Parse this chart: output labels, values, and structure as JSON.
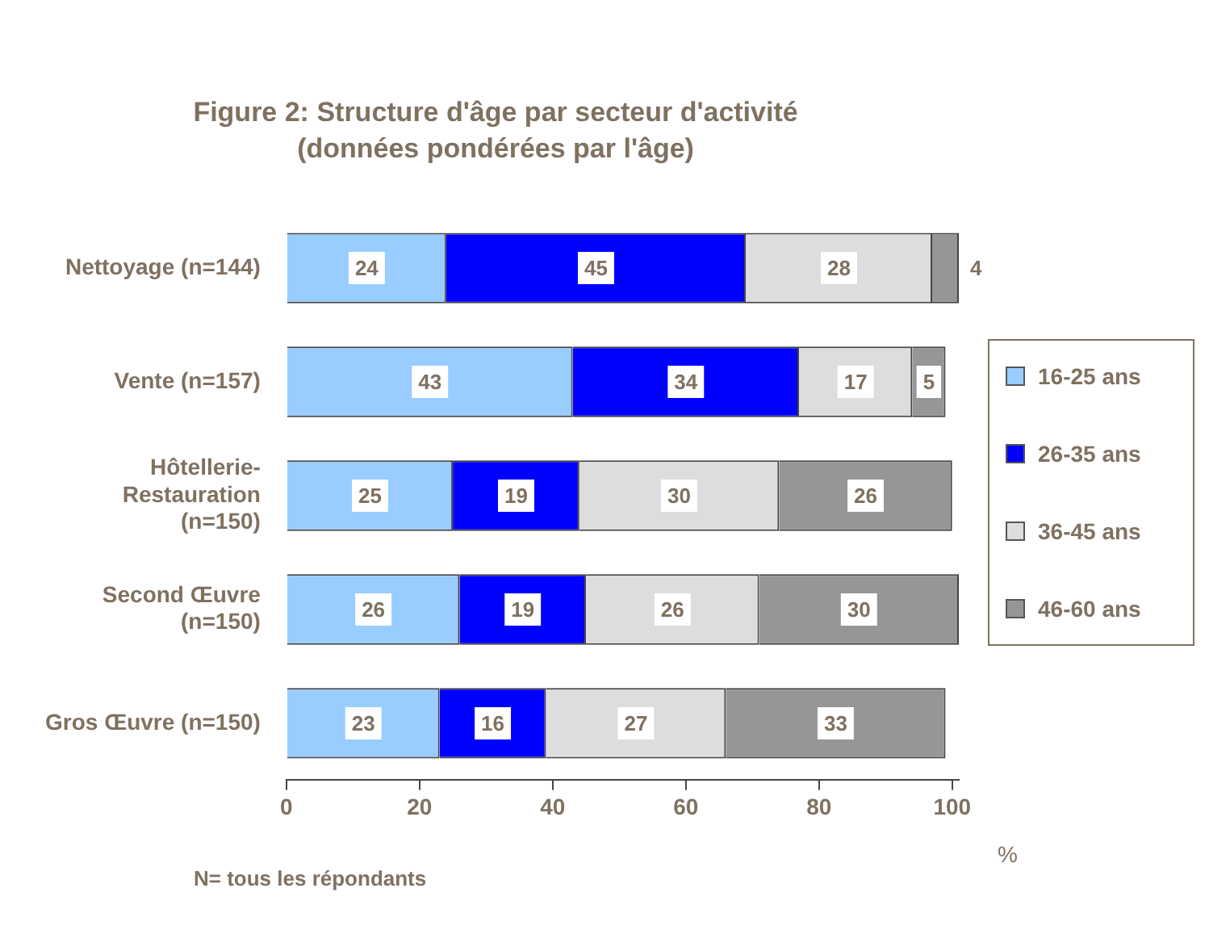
{
  "chart_data": {
    "type": "bar",
    "orientation": "horizontal",
    "stacked": true,
    "title": "Figure 2: Structure d'âge par secteur d'activité",
    "subtitle": "(données pondérées par l'âge)",
    "xlabel": "%",
    "categories": [
      "Nettoyage (n=144)",
      "Vente (n=157)",
      "Hôtellerie-Restauration (n=150)",
      "Second Œuvre (n=150)",
      "Gros Œuvre (n=150)"
    ],
    "series": [
      {
        "name": "16-25 ans",
        "color": "#99ccff",
        "values": [
          24,
          43,
          25,
          26,
          23
        ]
      },
      {
        "name": "26-35 ans",
        "color": "#0000ff",
        "values": [
          45,
          34,
          19,
          19,
          16
        ]
      },
      {
        "name": "36-45 ans",
        "color": "#dddddd",
        "values": [
          28,
          17,
          30,
          26,
          27
        ]
      },
      {
        "name": "46-60 ans",
        "color": "#969696",
        "values": [
          4,
          5,
          26,
          30,
          33
        ]
      }
    ],
    "xlim": [
      0,
      101
    ],
    "xticks": [
      0,
      20,
      40,
      60,
      80,
      100
    ],
    "data_labels": true,
    "grid": false,
    "legend": "right",
    "annotations": [
      "N= tous les répondants"
    ]
  }
}
